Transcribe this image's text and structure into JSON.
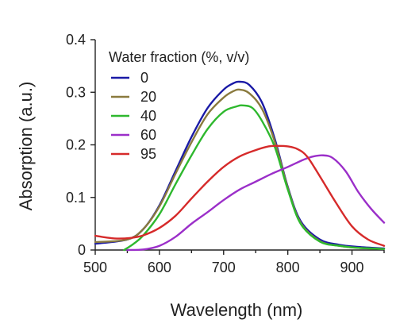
{
  "chart_data": {
    "type": "line",
    "xlabel": "Wavelength (nm)",
    "ylabel": "Absorption (a.u.)",
    "xlim": [
      500,
      950
    ],
    "ylim": [
      0,
      0.4
    ],
    "xticks": [
      500,
      600,
      700,
      800,
      900
    ],
    "yticks": [
      0,
      0.1,
      0.2,
      0.3,
      0.4
    ],
    "ytick_labels": [
      "0",
      "0.1",
      "0.2",
      "0.3",
      "0.4"
    ],
    "grid": false,
    "legend": {
      "title": "Water fraction (%, v/v)",
      "placement": "top-left"
    },
    "series": [
      {
        "name": "0",
        "color": "#1a1aa6",
        "x": [
          500,
          550,
          575,
          600,
          625,
          650,
          675,
          700,
          715,
          725,
          740,
          760,
          780,
          800,
          820,
          850,
          880,
          910,
          950
        ],
        "y": [
          0.012,
          0.02,
          0.04,
          0.085,
          0.15,
          0.215,
          0.27,
          0.305,
          0.317,
          0.32,
          0.314,
          0.28,
          0.21,
          0.12,
          0.055,
          0.02,
          0.01,
          0.006,
          0.003
        ]
      },
      {
        "name": "20",
        "color": "#8a7a3e",
        "x": [
          500,
          550,
          575,
          600,
          625,
          650,
          675,
          700,
          715,
          725,
          740,
          760,
          780,
          800,
          820,
          850,
          880,
          910,
          950
        ],
        "y": [
          0.015,
          0.02,
          0.04,
          0.083,
          0.145,
          0.205,
          0.258,
          0.29,
          0.302,
          0.305,
          0.298,
          0.268,
          0.205,
          0.118,
          0.052,
          0.017,
          0.008,
          0.004,
          0.002
        ]
      },
      {
        "name": "40",
        "color": "#2eb82e",
        "x": [
          545,
          560,
          575,
          600,
          625,
          650,
          675,
          700,
          720,
          730,
          745,
          760,
          780,
          800,
          820,
          850,
          880,
          910,
          950
        ],
        "y": [
          0.0,
          0.012,
          0.028,
          0.068,
          0.125,
          0.18,
          0.23,
          0.263,
          0.273,
          0.275,
          0.27,
          0.245,
          0.195,
          0.115,
          0.05,
          0.016,
          0.008,
          0.004,
          0.002
        ]
      },
      {
        "name": "60",
        "color": "#9b2fc9",
        "x": [
          550,
          575,
          600,
          625,
          650,
          675,
          700,
          725,
          750,
          775,
          800,
          825,
          840,
          855,
          870,
          890,
          910,
          930,
          950
        ],
        "y": [
          0.0,
          0.001,
          0.008,
          0.025,
          0.05,
          0.072,
          0.095,
          0.115,
          0.13,
          0.145,
          0.158,
          0.172,
          0.178,
          0.18,
          0.175,
          0.15,
          0.11,
          0.078,
          0.052
        ]
      },
      {
        "name": "95",
        "color": "#d62a2a",
        "x": [
          500,
          530,
          555,
          575,
          600,
          625,
          650,
          675,
          700,
          725,
          750,
          770,
          785,
          800,
          815,
          830,
          850,
          875,
          900,
          925,
          950
        ],
        "y": [
          0.027,
          0.022,
          0.023,
          0.028,
          0.042,
          0.065,
          0.098,
          0.13,
          0.158,
          0.178,
          0.19,
          0.197,
          0.198,
          0.197,
          0.192,
          0.178,
          0.14,
          0.09,
          0.045,
          0.02,
          0.008
        ]
      }
    ]
  }
}
